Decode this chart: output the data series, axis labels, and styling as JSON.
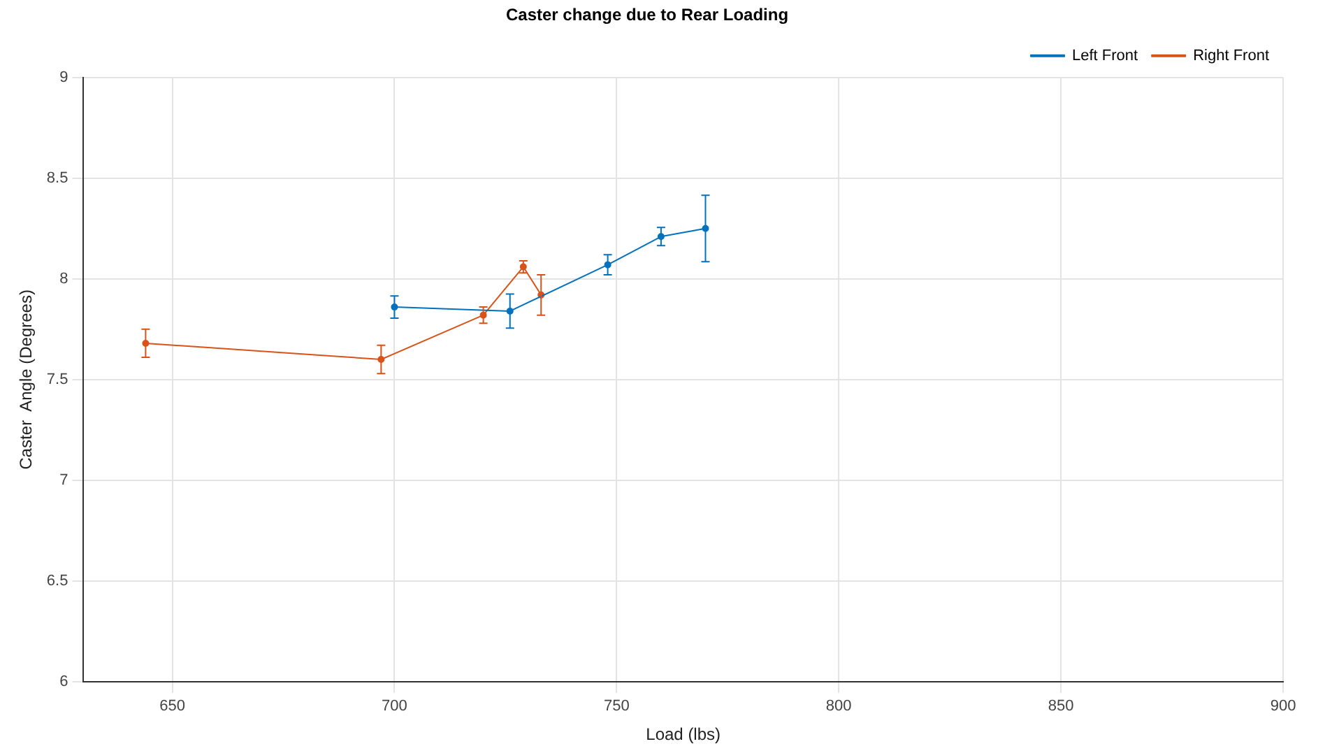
{
  "chart_data": {
    "type": "line",
    "title": "Caster change due to Rear Loading",
    "xlabel": "Load (lbs)",
    "ylabel": "Caster  Angle (Degrees)",
    "xlim": [
      630,
      900
    ],
    "xticks": [
      650,
      700,
      750,
      800,
      850,
      900
    ],
    "ylim": [
      6,
      9
    ],
    "yticks": [
      6,
      6.5,
      7,
      7.5,
      8,
      8.5,
      9
    ],
    "grid": true,
    "legend": "top right",
    "marker": "circle",
    "series": [
      {
        "name": "Left Front",
        "color": "#0072bd",
        "x": [
          700,
          726,
          748,
          760,
          770
        ],
        "values": [
          7.86,
          7.84,
          8.07,
          8.21,
          8.25
        ],
        "errors": [
          0.055,
          0.085,
          0.05,
          0.045,
          0.165
        ]
      },
      {
        "name": "Right Front",
        "color": "#d95319",
        "x": [
          644,
          697,
          720,
          729,
          733
        ],
        "values": [
          7.68,
          7.6,
          7.82,
          8.06,
          7.92
        ],
        "errors": [
          0.07,
          0.07,
          0.04,
          0.03,
          0.1
        ]
      }
    ]
  }
}
